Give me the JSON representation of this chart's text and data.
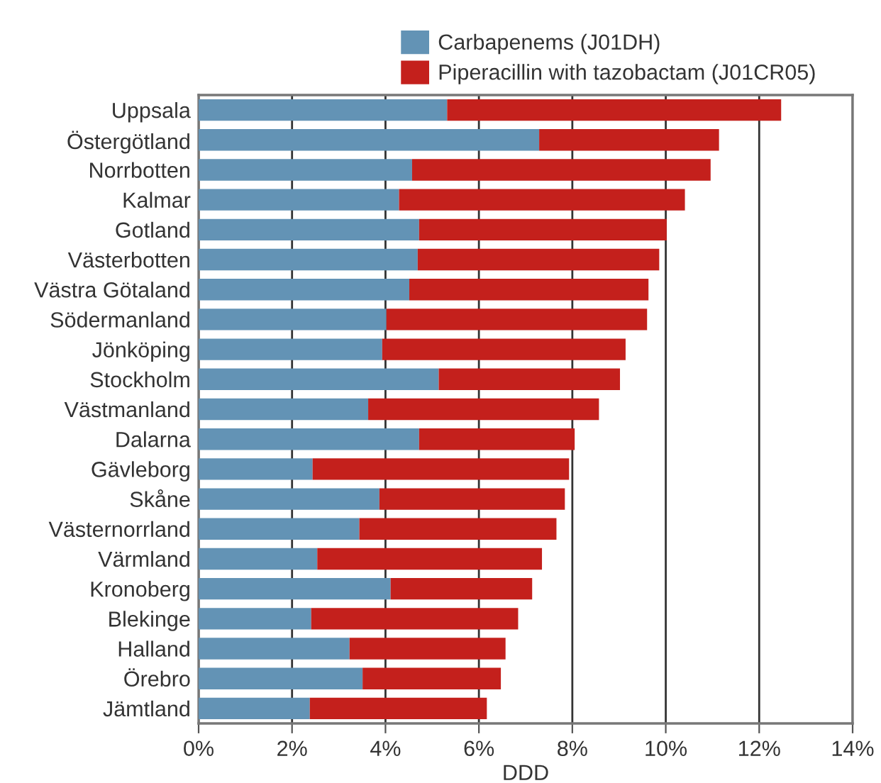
{
  "chart_data": {
    "type": "bar",
    "orientation": "horizontal",
    "stacked": true,
    "xlabel": "DDD",
    "categories": [
      "Uppsala",
      "Östergötland",
      "Norrbotten",
      "Kalmar",
      "Gotland",
      "Västerbotten",
      "Västra Götaland",
      "Södermanland",
      "Jönköping",
      "Stockholm",
      "Västmanland",
      "Dalarna",
      "Gävleborg",
      "Skåne",
      "Västernorrland",
      "Värmland",
      "Kronoberg",
      "Blekinge",
      "Halland",
      "Örebro",
      "Jämtland"
    ],
    "series": [
      {
        "name": "Carbapenems (J01DH)",
        "color": "#6393b5",
        "values": [
          5.32,
          7.29,
          4.57,
          4.29,
          4.72,
          4.69,
          4.51,
          4.02,
          3.93,
          5.14,
          3.63,
          4.72,
          2.44,
          3.87,
          3.44,
          2.54,
          4.11,
          2.41,
          3.23,
          3.51,
          2.38
        ]
      },
      {
        "name": "Piperacillin with tazobactam (J01CR05)",
        "color": "#c4201c",
        "values": [
          7.15,
          3.85,
          6.39,
          6.12,
          5.3,
          5.17,
          5.12,
          5.58,
          5.21,
          3.88,
          4.94,
          3.33,
          5.49,
          3.97,
          4.22,
          4.81,
          3.03,
          4.43,
          3.34,
          2.96,
          3.79
        ]
      }
    ],
    "xlim": [
      0,
      14
    ],
    "xticks": [
      {
        "value": 0,
        "label": "0%"
      },
      {
        "value": 2,
        "label": "2%"
      },
      {
        "value": 4,
        "label": "4%"
      },
      {
        "value": 6,
        "label": "6%"
      },
      {
        "value": 8,
        "label": "8%"
      },
      {
        "value": 10,
        "label": "10%"
      },
      {
        "value": 12,
        "label": "12%"
      },
      {
        "value": 14,
        "label": "14%"
      }
    ],
    "grid": "x",
    "legend": "top"
  }
}
